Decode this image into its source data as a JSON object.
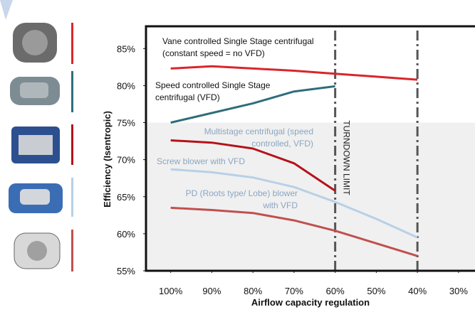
{
  "chart_data": {
    "type": "line",
    "y_axis_label": "Efficiency (Isentropic)",
    "x_axis_label": "Airflow capacity regulation",
    "x": [
      100,
      90,
      80,
      70,
      60,
      50,
      40
    ],
    "xlim": [
      106,
      26
    ],
    "xticks": [
      {
        "value": 100,
        "label": "100%"
      },
      {
        "value": 90,
        "label": "90%"
      },
      {
        "value": 80,
        "label": "80%"
      },
      {
        "value": 70,
        "label": "70%"
      },
      {
        "value": 60,
        "label": "60%"
      },
      {
        "value": 50,
        "label": "50%"
      },
      {
        "value": 40,
        "label": "40%"
      },
      {
        "value": 30,
        "label": "30%"
      }
    ],
    "ylim": [
      55,
      88
    ],
    "yticks": [
      {
        "value": 55,
        "label": "55%"
      },
      {
        "value": 60,
        "label": "60%"
      },
      {
        "value": 65,
        "label": "65%"
      },
      {
        "value": 70,
        "label": "70%"
      },
      {
        "value": 75,
        "label": "75%"
      },
      {
        "value": 80,
        "label": "80%"
      },
      {
        "value": 85,
        "label": "85%"
      }
    ],
    "shaded_below": 75,
    "turndown_limits": [
      60,
      40
    ],
    "turndown_label": "TURNDOWN LIMIT",
    "series": [
      {
        "name": "Vane controlled Single Stage centrifugal (constant speed = no VFD)",
        "label_lines": [
          "Vane controlled Single Stage centrifugal",
          "(constant speed = no VFD)"
        ],
        "label_color": "#111111",
        "color": "#d9262b",
        "values": [
          82.3,
          82.6,
          82.3,
          82.0,
          81.6,
          81.2,
          80.8
        ]
      },
      {
        "name": "Speed controlled Single Stage centrifugal (VFD)",
        "label_lines": [
          "Speed controlled Single Stage",
          "centrifugal (VFD)"
        ],
        "label_color": "#111111",
        "color": "#2e6e7a",
        "values": [
          75.0,
          76.3,
          77.6,
          79.2,
          79.9,
          null,
          null
        ]
      },
      {
        "name": "Multistage centrifugal (speed controlled, VFD)",
        "label_lines": [
          "Multistage centrifugal (speed",
          "controlled, VFD)"
        ],
        "label_color": "#8aa6c1",
        "color": "#b5121b",
        "values": [
          72.6,
          72.3,
          71.5,
          69.5,
          65.8,
          null,
          null
        ]
      },
      {
        "name": "Screw blower with VFD",
        "label_lines": [
          "Screw blower with VFD"
        ],
        "label_color": "#8aa6c1",
        "color": "#b8d0e6",
        "values": [
          68.7,
          68.3,
          67.6,
          66.3,
          64.3,
          62.0,
          59.5
        ]
      },
      {
        "name": "PD (Roots type/ Lobe) blower with VFD",
        "label_lines": [
          "PD (Roots type/ Lobe) blower",
          "with VFD"
        ],
        "label_color": "#8aa6c1",
        "color": "#c0504d",
        "values": [
          63.5,
          63.2,
          62.8,
          61.8,
          60.4,
          58.7,
          57.0
        ]
      }
    ]
  }
}
